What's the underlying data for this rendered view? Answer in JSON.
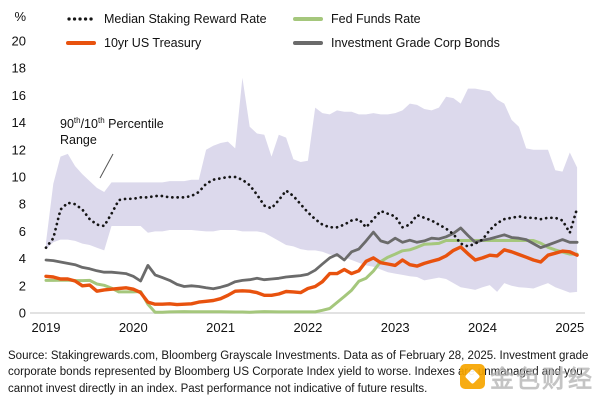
{
  "legend": {
    "items": [
      {
        "label": "Median Staking Reward Rate",
        "color": "#151515",
        "style": "dotted"
      },
      {
        "label": "10yr US Treasury",
        "color": "#E8520E",
        "style": "solid"
      },
      {
        "label": "Fed Funds Rate",
        "color": "#A5C77C",
        "style": "solid"
      },
      {
        "label": "Investment Grade Corp Bonds",
        "color": "#6B6B6B",
        "style": "solid"
      }
    ]
  },
  "annotation": {
    "part1": "90",
    "sup1": "th",
    "part2": "/10",
    "sup2": "th",
    "part3": " Percentile",
    "part4": "Range"
  },
  "chart_data": {
    "type": "line",
    "y_axis_unit": "%",
    "ylim": [
      0,
      20
    ],
    "y_ticks": [
      0,
      2,
      4,
      6,
      8,
      10,
      12,
      14,
      16,
      18,
      20
    ],
    "x_tick_years": [
      "2019",
      "2020",
      "2021",
      "2022",
      "2023",
      "2024",
      "2025"
    ],
    "x_start": "2019-01",
    "x_end": "2025-02",
    "frequency": "monthly",
    "grid": "off",
    "legend_position": "top",
    "band": {
      "name": "90th/10th Percentile Range",
      "fill": "#DCD9EC",
      "upper": [
        5.2,
        9.5,
        11.5,
        11.7,
        10.8,
        10.2,
        9.7,
        9.2,
        8.9,
        9.6,
        9.6,
        9.6,
        9.6,
        9.6,
        9.6,
        9.6,
        9.6,
        9.7,
        9.7,
        9.7,
        9.8,
        9.8,
        12.0,
        12.3,
        12.5,
        12.6,
        12.1,
        17.3,
        13.7,
        13.2,
        13.1,
        11.5,
        13.1,
        12.9,
        11.3,
        11.1,
        11.2,
        15.1,
        14.7,
        14.6,
        14.9,
        14.8,
        14.8,
        14.6,
        14.6,
        14.7,
        14.6,
        14.6,
        14.7,
        14.9,
        15.4,
        15.3,
        15.0,
        14.9,
        15.1,
        15.9,
        15.8,
        15.4,
        16.5,
        16.5,
        16.4,
        16.3,
        15.7,
        15.4,
        14.2,
        13.7,
        12.1,
        12.0,
        12.0,
        12.0,
        10.5,
        10.4,
        11.8,
        10.7
      ],
      "lower": [
        4.7,
        5.2,
        5.4,
        5.4,
        5.3,
        5.1,
        5.0,
        4.8,
        4.6,
        6.4,
        6.4,
        6.4,
        6.4,
        6.4,
        5.9,
        6.0,
        6.0,
        6.1,
        6.1,
        6.1,
        6.1,
        6.05,
        6.0,
        6.0,
        6.1,
        6.1,
        6.1,
        6.0,
        6.0,
        6.0,
        5.9,
        5.6,
        5.3,
        5.0,
        4.9,
        4.7,
        4.6,
        4.6,
        4.5,
        4.3,
        4.2,
        4.1,
        3.9,
        3.7,
        3.5,
        3.4,
        3.2,
        3.0,
        2.9,
        2.8,
        2.7,
        2.65,
        2.4,
        2.5,
        2.6,
        2.5,
        2.2,
        1.9,
        1.8,
        1.7,
        1.9,
        2.05,
        1.55,
        2.2,
        2.0,
        1.9,
        1.85,
        1.8,
        2.0,
        2.2,
        1.9,
        1.7,
        1.5,
        1.55
      ]
    },
    "series": [
      {
        "name": "Fed Funds Rate",
        "color": "#A5C77C",
        "style": "solid",
        "width": 3,
        "values": [
          2.4,
          2.4,
          2.41,
          2.42,
          2.39,
          2.38,
          2.4,
          2.13,
          2.04,
          1.83,
          1.55,
          1.55,
          1.55,
          1.58,
          0.65,
          0.06,
          0.05,
          0.08,
          0.09,
          0.1,
          0.09,
          0.09,
          0.09,
          0.09,
          0.09,
          0.08,
          0.07,
          0.07,
          0.06,
          0.08,
          0.1,
          0.09,
          0.08,
          0.08,
          0.08,
          0.08,
          0.08,
          0.08,
          0.2,
          0.33,
          0.77,
          1.21,
          1.68,
          2.33,
          2.56,
          3.08,
          3.78,
          4.1,
          4.33,
          4.57,
          4.65,
          4.83,
          5.06,
          5.08,
          5.12,
          5.33,
          5.33,
          5.33,
          5.33,
          5.33,
          5.33,
          5.33,
          5.33,
          5.33,
          5.33,
          5.33,
          5.33,
          5.33,
          5.13,
          4.83,
          4.64,
          4.48,
          4.33,
          4.33
        ]
      },
      {
        "name": "10yr US Treasury",
        "color": "#E8520E",
        "style": "solid",
        "width": 3.4,
        "values": [
          2.7,
          2.65,
          2.5,
          2.5,
          2.35,
          2.0,
          2.05,
          1.6,
          1.7,
          1.75,
          1.8,
          1.85,
          1.75,
          1.5,
          0.8,
          0.65,
          0.65,
          0.68,
          0.62,
          0.65,
          0.68,
          0.8,
          0.86,
          0.92,
          1.05,
          1.3,
          1.6,
          1.63,
          1.6,
          1.5,
          1.3,
          1.3,
          1.4,
          1.58,
          1.55,
          1.5,
          1.8,
          1.95,
          2.3,
          2.9,
          2.9,
          3.2,
          2.9,
          3.1,
          3.8,
          4.05,
          3.7,
          3.6,
          3.5,
          3.9,
          3.55,
          3.45,
          3.65,
          3.8,
          3.95,
          4.2,
          4.6,
          4.85,
          4.35,
          3.9,
          4.05,
          4.25,
          4.2,
          4.65,
          4.5,
          4.3,
          4.1,
          3.9,
          3.75,
          4.25,
          4.4,
          4.55,
          4.5,
          4.25
        ]
      },
      {
        "name": "Investment Grade Corp Bonds",
        "color": "#6B6B6B",
        "style": "solid",
        "width": 2.8,
        "values": [
          3.9,
          3.85,
          3.75,
          3.65,
          3.55,
          3.35,
          3.25,
          3.1,
          3.0,
          3.0,
          2.95,
          2.9,
          2.7,
          2.35,
          3.5,
          2.8,
          2.6,
          2.4,
          2.1,
          1.95,
          2.0,
          1.95,
          1.85,
          1.78,
          1.9,
          2.05,
          2.3,
          2.4,
          2.45,
          2.55,
          2.45,
          2.5,
          2.55,
          2.65,
          2.7,
          2.75,
          2.85,
          3.15,
          3.6,
          4.05,
          4.3,
          3.9,
          4.5,
          4.7,
          5.3,
          5.95,
          5.3,
          5.15,
          5.5,
          5.2,
          5.35,
          5.2,
          5.3,
          5.5,
          5.45,
          5.6,
          5.85,
          6.25,
          5.7,
          5.2,
          5.35,
          5.45,
          5.6,
          5.75,
          5.55,
          5.5,
          5.4,
          5.1,
          4.8,
          5.0,
          5.2,
          5.4,
          5.2,
          5.2
        ]
      },
      {
        "name": "Median Staking Reward Rate",
        "color": "#151515",
        "style": "dotted",
        "width": 2.7,
        "values": [
          4.8,
          5.5,
          7.6,
          8.1,
          8.0,
          7.6,
          6.9,
          6.5,
          6.4,
          7.3,
          8.3,
          8.4,
          8.4,
          8.5,
          8.5,
          8.6,
          8.6,
          8.5,
          8.5,
          8.5,
          8.6,
          8.9,
          9.5,
          9.8,
          9.9,
          10.0,
          10.0,
          9.8,
          9.4,
          8.7,
          7.9,
          7.7,
          8.3,
          9.0,
          8.6,
          8.0,
          7.4,
          6.9,
          6.5,
          6.3,
          6.3,
          6.5,
          6.8,
          6.9,
          6.3,
          6.9,
          7.5,
          7.3,
          7.1,
          6.3,
          6.5,
          7.2,
          7.0,
          6.8,
          6.5,
          6.2,
          5.8,
          5.1,
          4.9,
          5.1,
          5.4,
          6.1,
          6.6,
          6.9,
          7.0,
          7.1,
          7.0,
          7.0,
          6.9,
          7.0,
          7.0,
          6.8,
          5.9,
          7.7
        ]
      }
    ]
  },
  "source": {
    "text": "Source: Stakingrewards.com, Bloomberg Grayscale Investments. Data as of February 28, 2025. Investment grade corporate bonds represented by Bloomberg US Corporate Index yield to worse. Indexes are unmanaged and you cannot invest directly in an index. Past performance not indicative of future results."
  },
  "watermark": {
    "text": "金色财经"
  }
}
